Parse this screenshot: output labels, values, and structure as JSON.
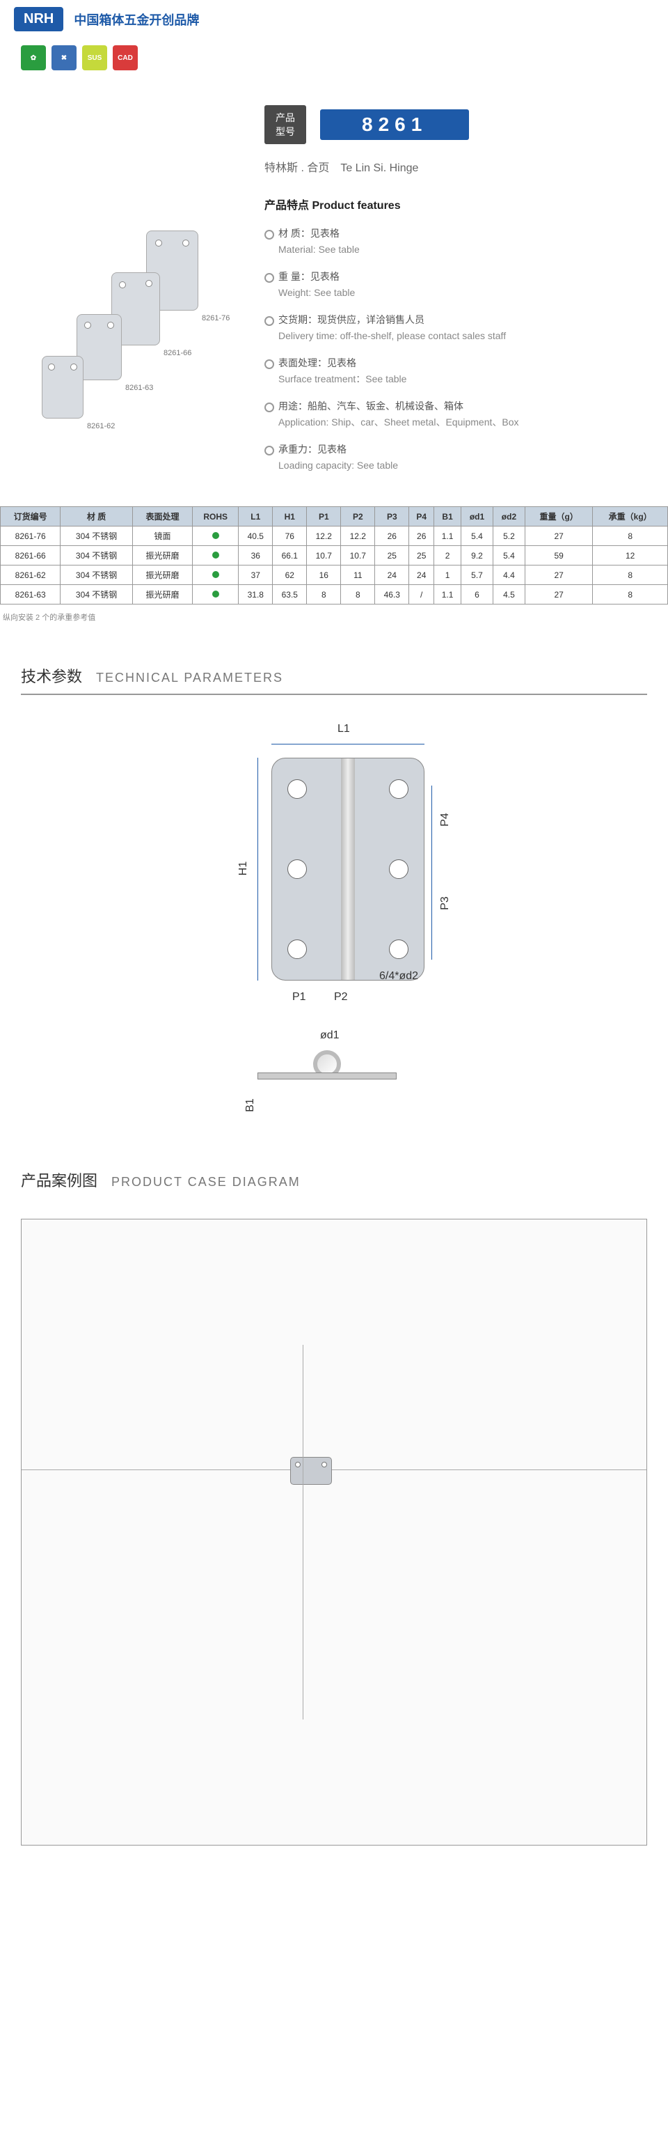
{
  "header": {
    "logo": "NRH",
    "tagline": "中国箱体五金开创品牌"
  },
  "badges": [
    "✿",
    "✖",
    "SUS",
    "CAD"
  ],
  "product": {
    "labelCn": "产品",
    "labelCn2": "型号",
    "number": "8261",
    "subtitle": "特林斯 . 合页　Te Lin Si. Hinge"
  },
  "imgLabels": [
    "8261-76",
    "8261-66",
    "8261-63",
    "8261-62"
  ],
  "featTitle": "产品特点  Product features",
  "features": [
    {
      "cn": "材 质：见表格",
      "en": "Material: See table"
    },
    {
      "cn": "重 量：见表格",
      "en": "Weight: See table"
    },
    {
      "cn": "交货期：现货供应，详洽销售人员",
      "en": "Delivery time: off-the-shelf, please contact sales staff"
    },
    {
      "cn": "表面处理：见表格",
      "en": "Surface treatment：See table"
    },
    {
      "cn": "用途：船舶、汽车、钣金、机械设备、箱体",
      "en": "Application: Ship、car、Sheet metal、Equipment、Box"
    },
    {
      "cn": "承重力：见表格",
      "en": "Loading capacity: See table"
    }
  ],
  "table": {
    "headers": [
      "订货编号",
      "材 质",
      "表面处理",
      "ROHS",
      "L1",
      "H1",
      "P1",
      "P2",
      "P3",
      "P4",
      "B1",
      "ød1",
      "ød2",
      "重量（g）",
      "承重（kg）"
    ],
    "rows": [
      [
        "8261-76",
        "304 不锈钢",
        "镜面",
        "●",
        "40.5",
        "76",
        "12.2",
        "12.2",
        "26",
        "26",
        "1.1",
        "5.4",
        "5.2",
        "27",
        "8"
      ],
      [
        "8261-66",
        "304 不锈钢",
        "振光研磨",
        "●",
        "36",
        "66.1",
        "10.7",
        "10.7",
        "25",
        "25",
        "2",
        "9.2",
        "5.4",
        "59",
        "12"
      ],
      [
        "8261-62",
        "304 不锈钢",
        "振光研磨",
        "●",
        "37",
        "62",
        "16",
        "11",
        "24",
        "24",
        "1",
        "5.7",
        "4.4",
        "27",
        "8"
      ],
      [
        "8261-63",
        "304 不锈钢",
        "振光研磨",
        "●",
        "31.8",
        "63.5",
        "8",
        "8",
        "46.3",
        "/",
        "1.1",
        "6",
        "4.5",
        "27",
        "8"
      ]
    ],
    "note": "纵向安装 2 个的承重参考值"
  },
  "sections": {
    "tech": {
      "cn": "技术参数",
      "en": "TECHNICAL PARAMETERS"
    },
    "case": {
      "cn": "产品案例图",
      "en": "PRODUCT CASE DIAGRAM"
    }
  },
  "dims": {
    "L1": "L1",
    "H1": "H1",
    "P1": "P1",
    "P2": "P2",
    "P3": "P3",
    "P4": "P4",
    "B1": "B1",
    "d1": "ød1",
    "d2": "6/4*ød2"
  }
}
